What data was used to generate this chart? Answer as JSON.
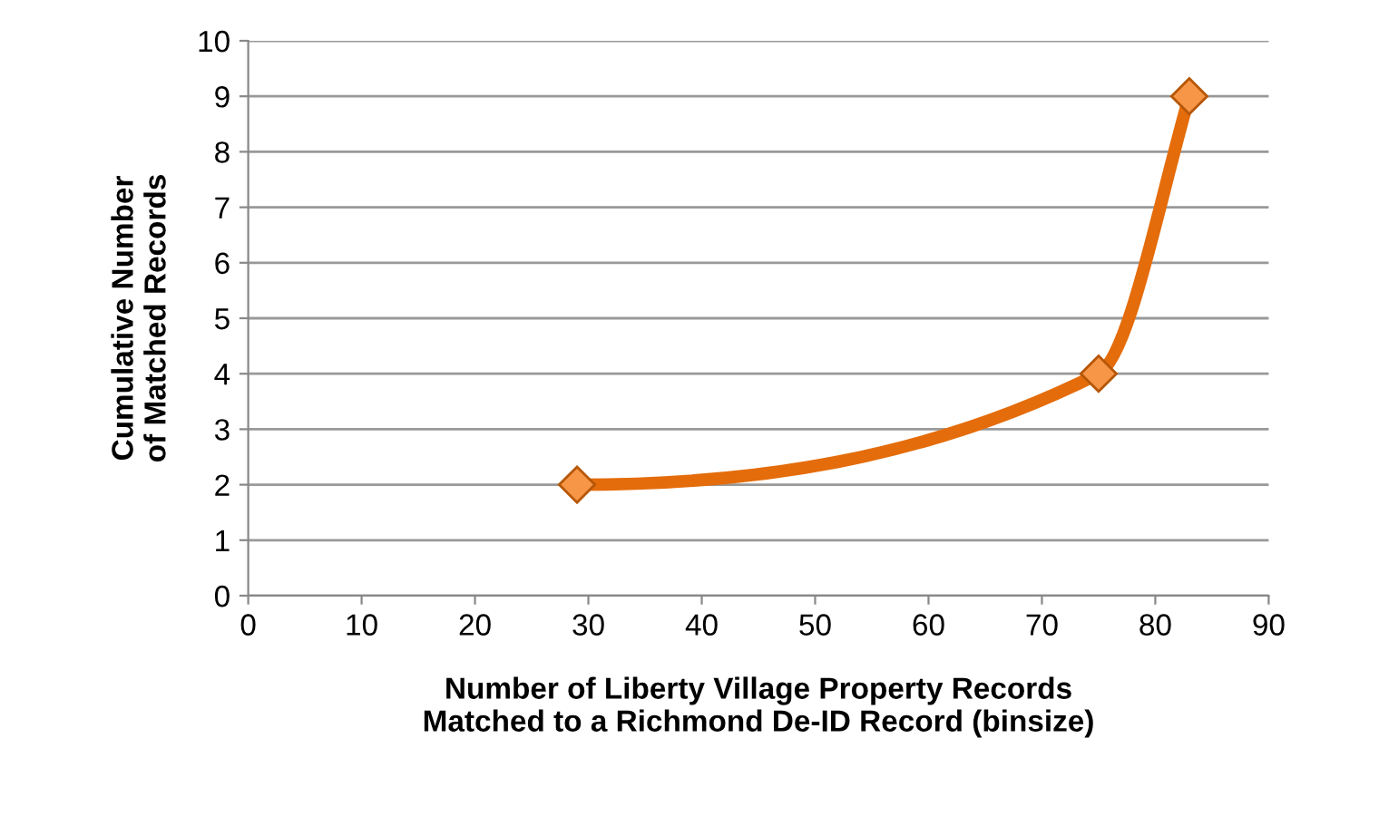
{
  "chart_data": {
    "type": "line",
    "xlabel": "Number of Liberty Village Property Records\nMatched to a Richmond De-ID Record (binsize)",
    "ylabel": "Cumulative Number\nof Matched Records",
    "x": [
      29,
      75,
      83
    ],
    "series": [
      {
        "color": "#e46c0a",
        "values": [
          2,
          4,
          9
        ]
      }
    ],
    "xlim": [
      0,
      90
    ],
    "xticks": [
      0,
      10,
      20,
      30,
      40,
      50,
      60,
      70,
      80,
      90
    ],
    "ylim": [
      0,
      10
    ],
    "yticks": [
      0,
      1,
      2,
      3,
      4,
      5,
      6,
      7,
      8,
      9,
      10
    ],
    "grid": "y",
    "marker": "diamond",
    "line_style": "solid",
    "legend": false
  }
}
